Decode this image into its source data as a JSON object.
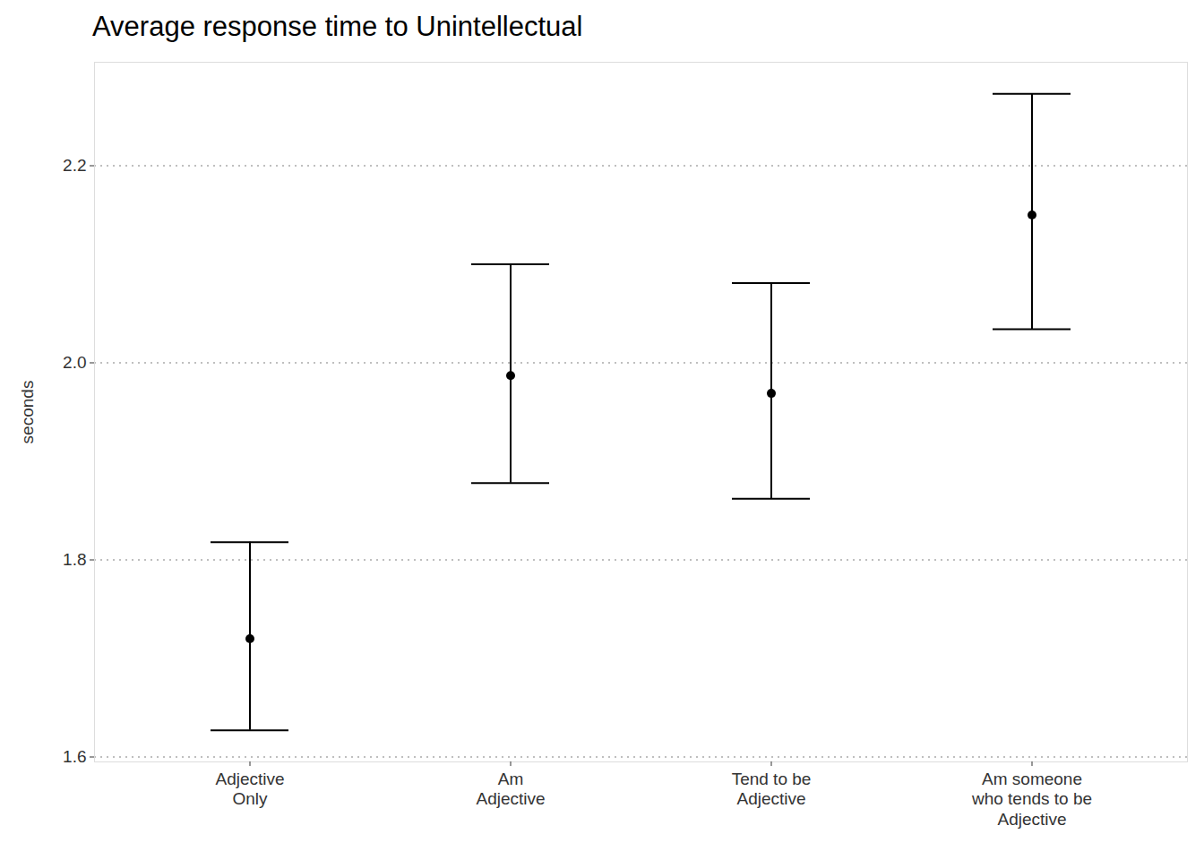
{
  "chart_data": {
    "type": "point",
    "title": "Average response time to Unintellectual",
    "y_label": "seconds",
    "categories": [
      "Adjective\nOnly",
      "Am\nAdjective",
      "Tend to be\nAdjective",
      "Am someone\nwho tends to be\nAdjective"
    ],
    "values": [
      1.72,
      1.987,
      1.969,
      2.15
    ],
    "ci_low": [
      1.627,
      1.878,
      1.862,
      2.034
    ],
    "ci_high": [
      1.818,
      2.1,
      2.081,
      2.273
    ],
    "color": "#000000",
    "ylim": [
      1.595,
      2.305
    ],
    "yticks": [
      1.6,
      1.8,
      {
        "value": 2,
        "label": "2.0"
      },
      2.2
    ],
    "grid": true
  }
}
